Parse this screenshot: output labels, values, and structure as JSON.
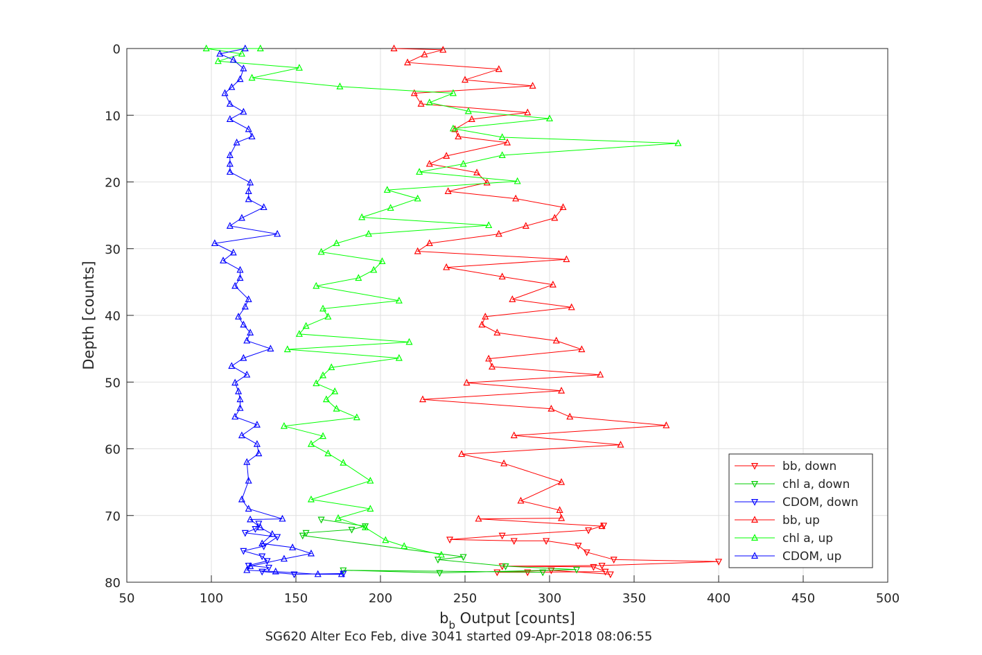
{
  "chart_data": {
    "type": "line",
    "xlabel_main": "b",
    "xlabel_sub": "b",
    "xlabel_rest": " Output [counts]",
    "ylabel": "Depth [counts]",
    "caption": "SG620 Alter Eco Feb, dive 3041 started 09-Apr-2018 08:06:55",
    "xlim": [
      50,
      500
    ],
    "ylim": [
      0,
      80
    ],
    "y_reversed": true,
    "grid": true,
    "x_ticks": [
      50,
      100,
      150,
      200,
      250,
      300,
      350,
      400,
      450,
      500
    ],
    "y_ticks": [
      0,
      10,
      20,
      30,
      40,
      50,
      60,
      70,
      80
    ],
    "legend_position": "bottom-right",
    "series": [
      {
        "name": "bb, down",
        "color": "#ff0000",
        "marker": "triangle-down",
        "points": [
          [
            332,
            71.5
          ],
          [
            323,
            72.2
          ],
          [
            272,
            73.0
          ],
          [
            241,
            73.6
          ],
          [
            279,
            73.8
          ],
          [
            298,
            73.8
          ],
          [
            317,
            74.5
          ],
          [
            322,
            75.5
          ],
          [
            338,
            76.6
          ],
          [
            400,
            76.9
          ],
          [
            331,
            77.5
          ],
          [
            272,
            77.6
          ],
          [
            326,
            77.7
          ],
          [
            333,
            78.4
          ],
          [
            287,
            78.5
          ],
          [
            269,
            78.5
          ],
          [
            301,
            78.2
          ],
          [
            336,
            78.8
          ]
        ]
      },
      {
        "name": "chl a, down",
        "color": "#00cc00",
        "marker": "triangle-down",
        "points": [
          [
            165,
            70.6
          ],
          [
            191,
            71.6
          ],
          [
            183,
            72.1
          ],
          [
            156,
            72.6
          ],
          [
            154,
            73.0
          ],
          [
            249,
            76.2
          ],
          [
            234,
            76.6
          ],
          [
            274,
            77.6
          ],
          [
            316,
            78.1
          ],
          [
            235,
            78.6
          ],
          [
            178,
            78.2
          ],
          [
            296,
            78.5
          ]
        ]
      },
      {
        "name": "CDOM, down",
        "color": "#0000ff",
        "marker": "triangle-down",
        "points": [
          [
            128,
            71.2
          ],
          [
            126,
            72.0
          ],
          [
            120,
            72.6
          ],
          [
            139,
            73.2
          ],
          [
            131,
            74.6
          ],
          [
            119,
            75.3
          ],
          [
            130,
            76.1
          ],
          [
            133,
            76.8
          ],
          [
            122,
            77.5
          ],
          [
            134,
            77.8
          ],
          [
            130,
            78.4
          ],
          [
            149,
            78.8
          ],
          [
            178,
            78.7
          ]
        ]
      },
      {
        "name": "bb, up",
        "color": "#ff0000",
        "marker": "triangle-up",
        "points": [
          [
            208,
            0
          ],
          [
            237,
            0.2
          ],
          [
            226,
            0.9
          ],
          [
            216,
            2.1
          ],
          [
            270,
            3.1
          ],
          [
            250,
            4.7
          ],
          [
            290,
            5.6
          ],
          [
            220,
            6.7
          ],
          [
            224,
            8.3
          ],
          [
            287,
            9.6
          ],
          [
            254,
            10.6
          ],
          [
            244,
            12.1
          ],
          [
            246,
            13.2
          ],
          [
            275,
            14.1
          ],
          [
            239,
            16.1
          ],
          [
            229,
            17.3
          ],
          [
            257,
            18.6
          ],
          [
            263,
            20.1
          ],
          [
            240,
            21.4
          ],
          [
            280,
            22.5
          ],
          [
            308,
            23.8
          ],
          [
            303,
            25.4
          ],
          [
            286,
            26.6
          ],
          [
            270,
            27.8
          ],
          [
            229,
            29.2
          ],
          [
            222,
            30.4
          ],
          [
            310,
            31.6
          ],
          [
            239,
            32.8
          ],
          [
            272,
            34.2
          ],
          [
            302,
            35.4
          ],
          [
            278,
            37.6
          ],
          [
            313,
            38.8
          ],
          [
            262,
            40.2
          ],
          [
            260,
            41.4
          ],
          [
            269,
            42.6
          ],
          [
            304,
            43.8
          ],
          [
            319,
            45.1
          ],
          [
            264,
            46.5
          ],
          [
            266,
            47.7
          ],
          [
            330,
            48.9
          ],
          [
            251,
            50.1
          ],
          [
            307,
            51.3
          ],
          [
            225,
            52.6
          ],
          [
            301,
            54.0
          ],
          [
            312,
            55.2
          ],
          [
            369,
            56.5
          ],
          [
            279,
            58.0
          ],
          [
            342,
            59.4
          ],
          [
            248,
            60.8
          ],
          [
            273,
            62.2
          ],
          [
            307,
            65.0
          ],
          [
            283,
            67.8
          ],
          [
            306,
            69.2
          ],
          [
            307,
            70.4
          ],
          [
            258,
            70.5
          ],
          [
            331,
            71.6
          ]
        ]
      },
      {
        "name": "chl a, up",
        "color": "#00ff00",
        "marker": "triangle-up",
        "points": [
          [
            129,
            0
          ],
          [
            97,
            0
          ],
          [
            118,
            0.8
          ],
          [
            104,
            1.9
          ],
          [
            152,
            2.9
          ],
          [
            124,
            4.4
          ],
          [
            176,
            5.7
          ],
          [
            243,
            6.7
          ],
          [
            229,
            8.1
          ],
          [
            252,
            9.4
          ],
          [
            300,
            10.5
          ],
          [
            243,
            12.0
          ],
          [
            272,
            13.3
          ],
          [
            376,
            14.2
          ],
          [
            272,
            16.0
          ],
          [
            249,
            17.3
          ],
          [
            223,
            18.5
          ],
          [
            281,
            19.9
          ],
          [
            204,
            21.2
          ],
          [
            222,
            22.5
          ],
          [
            206,
            23.9
          ],
          [
            189,
            25.3
          ],
          [
            264,
            26.5
          ],
          [
            193,
            27.8
          ],
          [
            174,
            29.2
          ],
          [
            165,
            30.5
          ],
          [
            201,
            31.9
          ],
          [
            196,
            33.2
          ],
          [
            187,
            34.4
          ],
          [
            162,
            35.6
          ],
          [
            211,
            37.8
          ],
          [
            166,
            39.0
          ],
          [
            169,
            40.2
          ],
          [
            156,
            41.6
          ],
          [
            152,
            42.8
          ],
          [
            217,
            44.0
          ],
          [
            145,
            45.1
          ],
          [
            211,
            46.4
          ],
          [
            171,
            47.8
          ],
          [
            166,
            49.0
          ],
          [
            162,
            50.2
          ],
          [
            173,
            51.4
          ],
          [
            168,
            52.6
          ],
          [
            174,
            54.0
          ],
          [
            186,
            55.3
          ],
          [
            143,
            56.6
          ],
          [
            166,
            58.1
          ],
          [
            159,
            59.3
          ],
          [
            169,
            60.7
          ],
          [
            178,
            62.1
          ],
          [
            194,
            64.8
          ],
          [
            159,
            67.6
          ],
          [
            194,
            69.0
          ],
          [
            175,
            70.4
          ],
          [
            191,
            71.8
          ],
          [
            203,
            73.7
          ],
          [
            214,
            74.6
          ],
          [
            236,
            75.9
          ]
        ]
      },
      {
        "name": "CDOM, up",
        "color": "#0000ff",
        "marker": "triangle-up",
        "points": [
          [
            120,
            0
          ],
          [
            105,
            0.8
          ],
          [
            113,
            1.7
          ],
          [
            119,
            3.0
          ],
          [
            117,
            4.6
          ],
          [
            112,
            5.8
          ],
          [
            108,
            6.7
          ],
          [
            111,
            8.3
          ],
          [
            119,
            9.5
          ],
          [
            111,
            10.6
          ],
          [
            122,
            12.1
          ],
          [
            124,
            13.2
          ],
          [
            115,
            14.1
          ],
          [
            111,
            16.0
          ],
          [
            111,
            17.3
          ],
          [
            111,
            18.5
          ],
          [
            123,
            20.1
          ],
          [
            122,
            21.4
          ],
          [
            122,
            22.6
          ],
          [
            131,
            23.8
          ],
          [
            118,
            25.4
          ],
          [
            111,
            26.6
          ],
          [
            139,
            27.8
          ],
          [
            102,
            29.2
          ],
          [
            113,
            30.6
          ],
          [
            107,
            31.8
          ],
          [
            117,
            33.2
          ],
          [
            117,
            34.4
          ],
          [
            114,
            35.6
          ],
          [
            122,
            37.6
          ],
          [
            120,
            38.7
          ],
          [
            116,
            40.2
          ],
          [
            119,
            41.4
          ],
          [
            123,
            42.6
          ],
          [
            121,
            43.8
          ],
          [
            135,
            45.0
          ],
          [
            119,
            46.4
          ],
          [
            112,
            47.6
          ],
          [
            121,
            48.9
          ],
          [
            114,
            50.1
          ],
          [
            116,
            51.4
          ],
          [
            117,
            52.6
          ],
          [
            117,
            53.9
          ],
          [
            114,
            55.2
          ],
          [
            127,
            56.4
          ],
          [
            118,
            58.0
          ],
          [
            127,
            59.3
          ],
          [
            128,
            60.7
          ],
          [
            121,
            62.0
          ],
          [
            122,
            64.8
          ],
          [
            118,
            67.6
          ],
          [
            122,
            69.0
          ],
          [
            142,
            70.5
          ],
          [
            123,
            70.6
          ],
          [
            129,
            71.8
          ],
          [
            136,
            72.8
          ],
          [
            130,
            74.2
          ],
          [
            148,
            74.8
          ],
          [
            159,
            75.7
          ],
          [
            143,
            76.5
          ],
          [
            123,
            77.6
          ],
          [
            121,
            78.2
          ],
          [
            138,
            78.4
          ],
          [
            163,
            78.8
          ],
          [
            177,
            78.8
          ]
        ]
      }
    ]
  }
}
